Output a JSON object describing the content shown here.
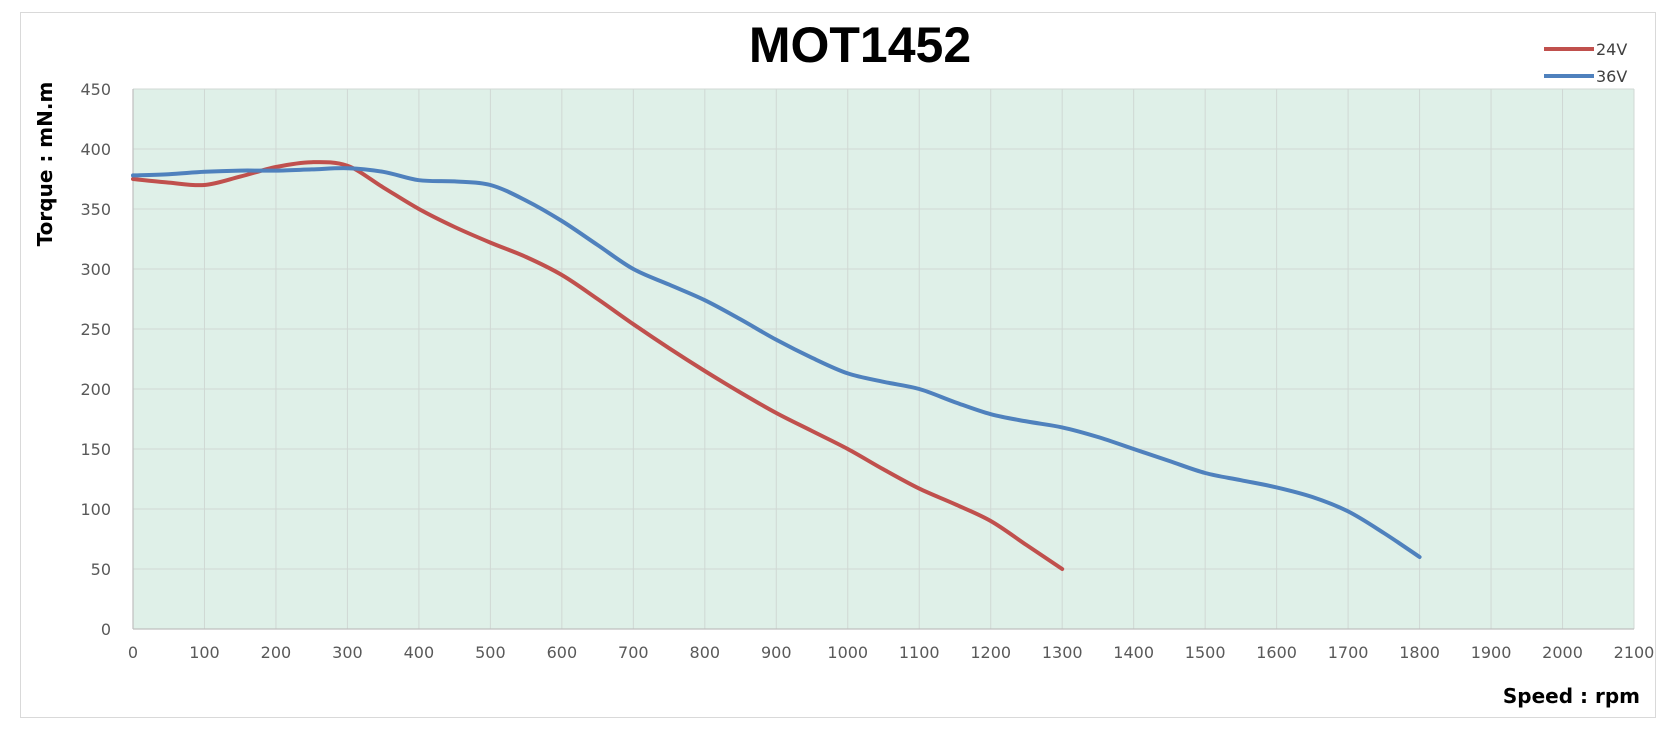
{
  "chart_data": {
    "type": "line",
    "title": "MOT1452",
    "xlabel": "Speed : rpm",
    "ylabel": "Torque : mN.m",
    "xlim": [
      0,
      2100
    ],
    "ylim": [
      0,
      450
    ],
    "x_ticks": [
      "0",
      "100",
      "200",
      "300",
      "400",
      "500",
      "600",
      "700",
      "800",
      "900",
      "1000",
      "1100",
      "1200",
      "1300",
      "1400",
      "1500",
      "1600",
      "1700",
      "1800",
      "1900",
      "2000",
      "2100"
    ],
    "y_ticks": [
      "0",
      "50",
      "100",
      "150",
      "200",
      "250",
      "300",
      "350",
      "400",
      "450"
    ],
    "grid": true,
    "legend_position": "top-right",
    "plot_background": "#dff0e8",
    "series": [
      {
        "name": "24V",
        "color": "#c0504d",
        "points": [
          [
            0,
            375
          ],
          [
            50,
            372
          ],
          [
            100,
            370
          ],
          [
            150,
            377
          ],
          [
            200,
            385
          ],
          [
            250,
            389
          ],
          [
            300,
            386
          ],
          [
            350,
            368
          ],
          [
            400,
            350
          ],
          [
            450,
            335
          ],
          [
            500,
            322
          ],
          [
            550,
            310
          ],
          [
            600,
            295
          ],
          [
            650,
            275
          ],
          [
            700,
            254
          ],
          [
            750,
            234
          ],
          [
            800,
            215
          ],
          [
            850,
            197
          ],
          [
            900,
            180
          ],
          [
            950,
            165
          ],
          [
            1000,
            150
          ],
          [
            1050,
            133
          ],
          [
            1100,
            117
          ],
          [
            1150,
            104
          ],
          [
            1200,
            90
          ],
          [
            1250,
            70
          ],
          [
            1300,
            50
          ]
        ]
      },
      {
        "name": "36V",
        "color": "#4f81bd",
        "points": [
          [
            0,
            378
          ],
          [
            50,
            379
          ],
          [
            100,
            381
          ],
          [
            150,
            382
          ],
          [
            200,
            382
          ],
          [
            250,
            383
          ],
          [
            300,
            384
          ],
          [
            350,
            381
          ],
          [
            400,
            374
          ],
          [
            450,
            373
          ],
          [
            500,
            370
          ],
          [
            550,
            357
          ],
          [
            600,
            340
          ],
          [
            650,
            320
          ],
          [
            700,
            300
          ],
          [
            750,
            287
          ],
          [
            800,
            274
          ],
          [
            850,
            258
          ],
          [
            900,
            241
          ],
          [
            950,
            226
          ],
          [
            1000,
            213
          ],
          [
            1050,
            206
          ],
          [
            1100,
            200
          ],
          [
            1150,
            189
          ],
          [
            1200,
            179
          ],
          [
            1250,
            173
          ],
          [
            1300,
            168
          ],
          [
            1350,
            160
          ],
          [
            1400,
            150
          ],
          [
            1450,
            140
          ],
          [
            1500,
            130
          ],
          [
            1550,
            124
          ],
          [
            1600,
            118
          ],
          [
            1650,
            110
          ],
          [
            1700,
            98
          ],
          [
            1750,
            80
          ],
          [
            1800,
            60
          ]
        ]
      }
    ]
  }
}
